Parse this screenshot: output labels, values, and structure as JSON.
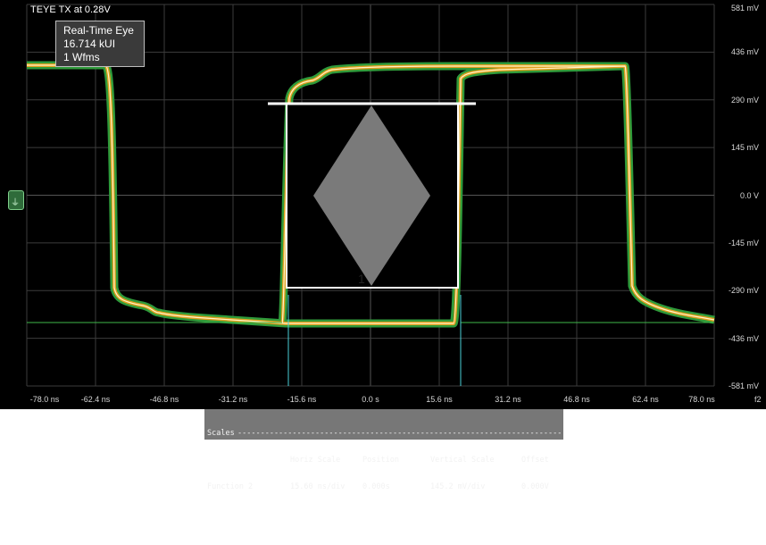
{
  "window": {
    "title": "TEYE TX at 0.28V"
  },
  "readout": {
    "line1": "Real-Time Eye",
    "line2": "16.714 kUI",
    "line3": "1 Wfms"
  },
  "axes": {
    "y_labels": [
      "581 mV",
      "436 mV",
      "290 mV",
      "145 mV",
      "0.0 V",
      "-145 mV",
      "-290 mV",
      "-436 mV",
      "-581 mV"
    ],
    "x_labels": [
      "-78.0 ns",
      "-62.4 ns",
      "-46.8 ns",
      "-31.2 ns",
      "-15.6 ns",
      "0.0 s",
      "15.6 ns",
      "31.2 ns",
      "46.8 ns",
      "62.4 ns",
      "78.0 ns"
    ],
    "x_suffix": "f2"
  },
  "mask": {
    "label": "1"
  },
  "marker": {
    "icon": "ground-reference-icon",
    "glyph": "⏚"
  },
  "scales": {
    "title": "Scales",
    "headers": [
      "Horiz Scale",
      "Position",
      "Vertical Scale",
      "Offset"
    ],
    "row": {
      "name": "Function 2",
      "horiz_scale": "15.60 ns/div",
      "position": "0.000s",
      "vertical_scale": "145.2 mV/div",
      "offset": "0.000V"
    }
  },
  "colors": {
    "background": "#000000",
    "grid": "#3c3c3c",
    "trace_outer": "#2f9a3a",
    "trace_mid": "#e0a020",
    "trace_core": "#fff5c8",
    "mask_fill": "#7a7a7a",
    "panel_bg": "#777777"
  }
}
